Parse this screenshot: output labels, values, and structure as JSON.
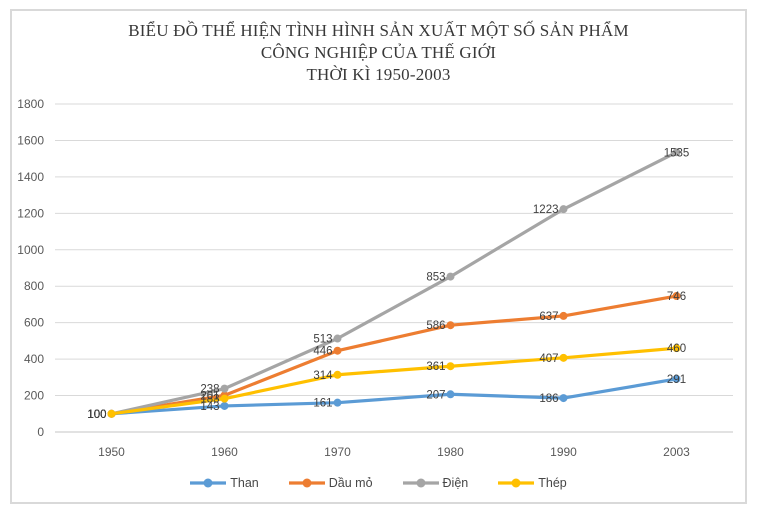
{
  "title": {
    "lines": [
      "BIỂU ĐỒ THỂ HIỆN TÌNH HÌNH SẢN XUẤT MỘT SỐ SẢN PHẨM",
      "CÔNG NGHIỆP CỦA THẾ GIỚI",
      "THỜI KÌ 1950-2003"
    ]
  },
  "chart_data": {
    "type": "line",
    "title": "BIỂU ĐỒ THỂ HIỆN TÌNH HÌNH SẢN XUẤT MỘT SỐ SẢN PHẨM CÔNG NGHIỆP CỦA THẾ GIỚI THỜI KÌ 1950-2003",
    "categories": [
      "1950",
      "1960",
      "1970",
      "1980",
      "1990",
      "2003"
    ],
    "series": [
      {
        "name": "Than",
        "color": "#5B9BD5",
        "values": [
          100,
          143,
          161,
          207,
          186,
          291
        ]
      },
      {
        "name": "Dầu mỏ",
        "color": "#ED7D31",
        "values": [
          100,
          201,
          446,
          586,
          637,
          746
        ]
      },
      {
        "name": "Điện",
        "color": "#A5A5A5",
        "values": [
          100,
          238,
          513,
          853,
          1223,
          1535
        ]
      },
      {
        "name": "Thép",
        "color": "#FFC000",
        "values": [
          100,
          183,
          314,
          361,
          407,
          460
        ]
      }
    ],
    "xlabel": "",
    "ylabel": "",
    "y_axis": {
      "min": 0,
      "max": 1800,
      "step": 200,
      "ticks": [
        "0",
        "200",
        "400",
        "600",
        "800",
        "1000",
        "1200",
        "1400",
        "1600",
        "1800"
      ]
    },
    "grid": true,
    "data_labels": true,
    "legend_position": "bottom"
  },
  "colors": {
    "gridline": "#D9D9D9",
    "zero_line": "#C6C6C6",
    "axis_label": "#595959",
    "data_label": "#404040",
    "frame_border": "#D9D9D9",
    "title_text": "#383838"
  }
}
